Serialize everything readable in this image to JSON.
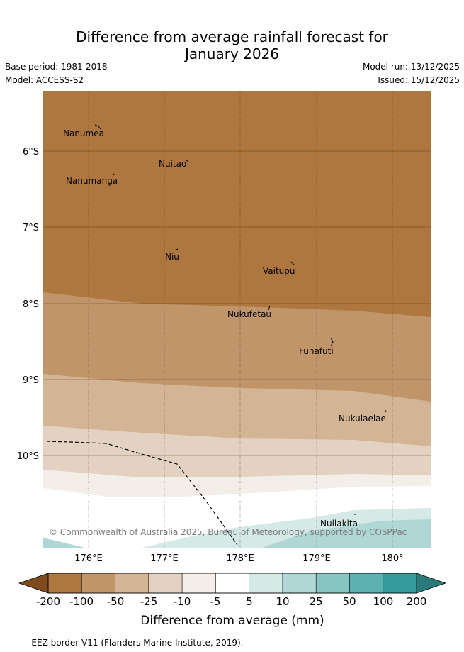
{
  "title_line1": "Difference from average rainfall forecast for",
  "title_line2": "January 2026",
  "base_period": "Base period: 1981-2018",
  "model": "Model: ACCESS-S2",
  "model_run": "Model run: 13/12/2025",
  "issued": "Issued: 15/12/2025",
  "map": {
    "lat_labels": [
      "6°S",
      "7°S",
      "8°S",
      "9°S",
      "10°S"
    ],
    "lon_labels": [
      "176°E",
      "177°E",
      "178°E",
      "179°E",
      "180°"
    ],
    "places": [
      "Nanumea",
      "Nuitao",
      "Nanumanga",
      "Niu",
      "Vaitupu",
      "Nukufetau",
      "Funafuti",
      "Nukulaelae",
      "Nuilakita"
    ],
    "copyright": "© Commonwealth of Australia 2025, Bureau of Meteorology, supported by COSPPac"
  },
  "legend": {
    "ticks": [
      "-200",
      "-100",
      "-50",
      "-25",
      "-10",
      "-5",
      "5",
      "10",
      "25",
      "50",
      "100",
      "200"
    ],
    "colors": [
      "#7f4a1e",
      "#ad773f",
      "#c0956a",
      "#d3b494",
      "#e3d2c2",
      "#f3eee8",
      "#ffffff",
      "#d5e9e7",
      "#afd7d6",
      "#88c6c4",
      "#5eb1b1",
      "#359c9b",
      "#2a7a7a"
    ],
    "label": "Difference from average (mm)"
  },
  "footer": "-- -- -- EEZ border V11 (Flanders Marine Institute, 2019)."
}
